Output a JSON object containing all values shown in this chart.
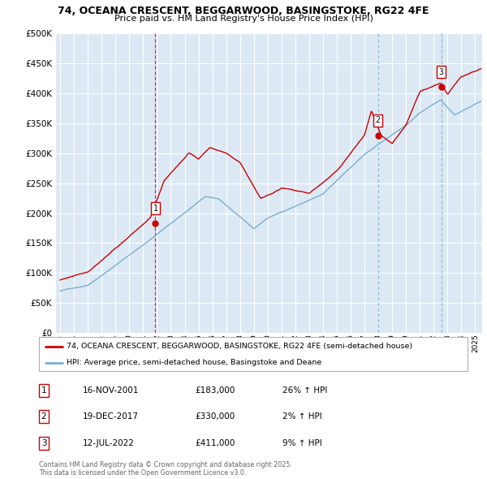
{
  "title1": "74, OCEANA CRESCENT, BEGGARWOOD, BASINGSTOKE, RG22 4FE",
  "title2": "Price paid vs. HM Land Registry's House Price Index (HPI)",
  "background_color": "#ffffff",
  "plot_bg_color": "#dce9f5",
  "grid_color": "#ffffff",
  "red_color": "#cc0000",
  "blue_color": "#7aadcf",
  "vline1_color": "#cc0000",
  "vline23_color": "#7aadcf",
  "sale_dates_num": [
    2001.88,
    2017.97,
    2022.54
  ],
  "sale_prices": [
    183000,
    330000,
    411000
  ],
  "sale_labels": [
    "1",
    "2",
    "3"
  ],
  "legend_red": "74, OCEANA CRESCENT, BEGGARWOOD, BASINGSTOKE, RG22 4FE (semi-detached house)",
  "legend_blue": "HPI: Average price, semi-detached house, Basingstoke and Deane",
  "table_rows": [
    [
      "1",
      "16-NOV-2001",
      "£183,000",
      "26% ↑ HPI"
    ],
    [
      "2",
      "19-DEC-2017",
      "£330,000",
      "2% ↑ HPI"
    ],
    [
      "3",
      "12-JUL-2022",
      "£411,000",
      "9% ↑ HPI"
    ]
  ],
  "footer": "Contains HM Land Registry data © Crown copyright and database right 2025.\nThis data is licensed under the Open Government Licence v3.0.",
  "ylim": [
    0,
    500000
  ],
  "yticks": [
    0,
    50000,
    100000,
    150000,
    200000,
    250000,
    300000,
    350000,
    400000,
    450000,
    500000
  ],
  "xmin": 1994.7,
  "xmax": 2025.5
}
